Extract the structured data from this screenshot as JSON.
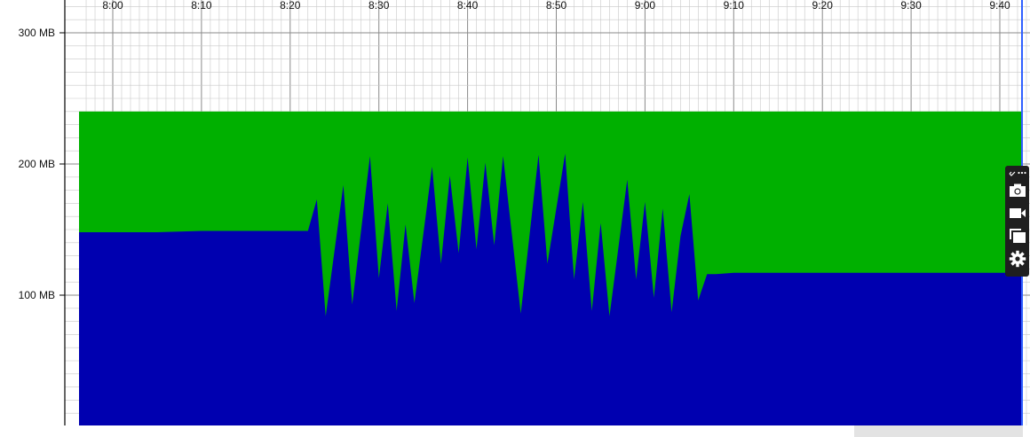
{
  "chart_data": {
    "type": "area",
    "title": "",
    "xlabel": "",
    "ylabel": "",
    "x_axis": {
      "range_minutes": [
        7.95,
        9.72
      ],
      "tick_labels": [
        "8:00",
        "8:10",
        "8:20",
        "8:30",
        "8:40",
        "8:50",
        "9:00",
        "9:10",
        "9:20",
        "9:30",
        "9:40"
      ]
    },
    "y_axis": {
      "range_mb": [
        0,
        326
      ],
      "tick_labels": [
        "300 MB",
        "200 MB",
        "100 MB"
      ],
      "tick_values": [
        300,
        200,
        100
      ]
    },
    "grid": true,
    "legend": "none",
    "series": [
      {
        "color": "#00b000",
        "constant_value": 240
      },
      {
        "color": "#0000b0",
        "points": [
          [
            "7:58",
            148
          ],
          [
            "8:05",
            148
          ],
          [
            "8:10",
            149
          ],
          [
            "8:22",
            149
          ],
          [
            "8:23",
            173
          ],
          [
            "8:24",
            84
          ],
          [
            "8:26",
            184
          ],
          [
            "8:27",
            93
          ],
          [
            "8:29",
            206
          ],
          [
            "8:30",
            113
          ],
          [
            "8:31",
            170
          ],
          [
            "8:32",
            88
          ],
          [
            "8:33",
            154
          ],
          [
            "8:34",
            94
          ],
          [
            "8:36",
            198
          ],
          [
            "8:37",
            124
          ],
          [
            "8:38",
            191
          ],
          [
            "8:39",
            132
          ],
          [
            "8:40",
            205
          ],
          [
            "8:41",
            135
          ],
          [
            "8:42",
            201
          ],
          [
            "8:43",
            138
          ],
          [
            "8:44",
            206
          ],
          [
            "8:46",
            86
          ],
          [
            "8:48",
            207
          ],
          [
            "8:49",
            124
          ],
          [
            "8:51",
            208
          ],
          [
            "8:52",
            112
          ],
          [
            "8:53",
            171
          ],
          [
            "8:54",
            88
          ],
          [
            "8:55",
            155
          ],
          [
            "8:56",
            84
          ],
          [
            "8:58",
            188
          ],
          [
            "8:59",
            112
          ],
          [
            "9:00",
            171
          ],
          [
            "9:01",
            98
          ],
          [
            "9:02",
            166
          ],
          [
            "9:03",
            87
          ],
          [
            "9:04",
            145
          ],
          [
            "9:05",
            177
          ],
          [
            "9:06",
            96
          ],
          [
            "9:07",
            116
          ],
          [
            "9:08",
            116
          ],
          [
            "9:10",
            117
          ],
          [
            "9:25",
            117
          ],
          [
            "9:42",
            117
          ]
        ]
      }
    ],
    "x_end_label": "9:42",
    "x_start_label": "7:58"
  },
  "colors": {
    "background": "#ffffff",
    "grid": "#c8c8c8",
    "axis": "#000000",
    "cursor_line": "#3060ff",
    "toolbar_bg": "#1f1f1f",
    "toolbar_icon": "#ffffff"
  },
  "toolbar": {
    "icons": [
      "link-icon",
      "more-icon",
      "camera-icon",
      "video-icon",
      "copy-icon",
      "gear-icon"
    ]
  }
}
